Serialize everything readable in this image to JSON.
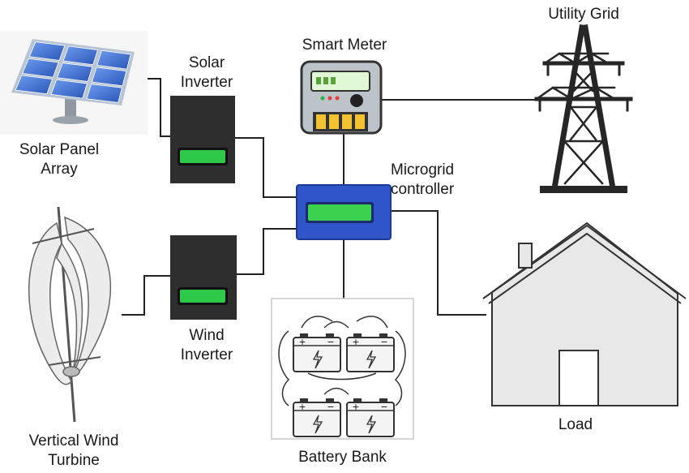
{
  "labels": {
    "solar_panel_line1": "Solar Panel",
    "solar_panel_line2": "Array",
    "solar_inverter_line1": "Solar",
    "solar_inverter_line2": "Inverter",
    "smart_meter": "Smart Meter",
    "utility_grid": "Utility Grid",
    "controller_line1": "Microgrid",
    "controller_line2": "controller",
    "wind_inverter_line1": "Wind",
    "wind_inverter_line2": "Inverter",
    "wind_turbine_line1": "Vertical Wind",
    "wind_turbine_line2": "Turbine",
    "battery_bank": "Battery Bank",
    "load": "Load"
  },
  "colors": {
    "line": "#222222",
    "inverter_body": "#2e2e2e",
    "inverter_display": "#2fc94a",
    "controller_body": "#2f55c9",
    "controller_display": "#3bd24e",
    "meter_body": "#bcc3c9",
    "meter_terminals": "#f2c230",
    "solar_cell": "#3a6fd6",
    "tower": "#262626",
    "house_fill": "#e8e8e8"
  },
  "battery": {
    "terminal_plus": "+",
    "terminal_minus": "−"
  }
}
